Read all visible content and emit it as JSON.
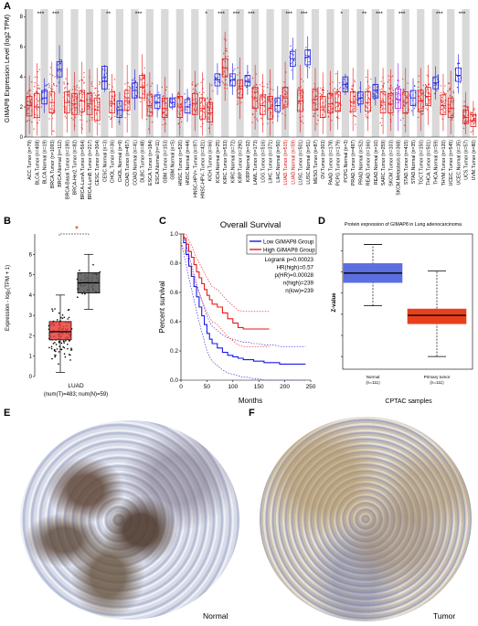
{
  "panels": {
    "A": {
      "letter": "A",
      "ylabel": "GIMAP8 Expression Level (log2 TPM)",
      "yticks": [
        0,
        2,
        4,
        6,
        8
      ],
      "ylim": [
        0,
        8.5
      ],
      "categories": [
        {
          "label": "ACC.Tumor (n=79)",
          "type": "tumor",
          "median": 2.1,
          "q1": 1.4,
          "q3": 2.7,
          "min": 0.2,
          "max": 4.1,
          "sig": "",
          "red": false
        },
        {
          "label": "BLCA.Tumor (n=408)",
          "type": "tumor",
          "median": 2.0,
          "q1": 1.3,
          "q3": 2.9,
          "min": 0.1,
          "max": 4.9,
          "sig": "***",
          "red": false
        },
        {
          "label": "BLCA.Normal (n=19)",
          "type": "normal",
          "median": 2.6,
          "q1": 2.2,
          "q3": 3.1,
          "min": 1.6,
          "max": 3.9,
          "sig": "",
          "red": false
        },
        {
          "label": "BRCA.Tumor (n=1093)",
          "type": "tumor",
          "median": 2.3,
          "q1": 1.6,
          "q3": 3.0,
          "min": 0.1,
          "max": 5.0,
          "sig": "***",
          "red": false
        },
        {
          "label": "BRCA.Normal (n=112)",
          "type": "normal",
          "median": 4.5,
          "q1": 4.0,
          "q3": 5.0,
          "min": 2.9,
          "max": 6.1,
          "sig": "",
          "red": false
        },
        {
          "label": "BRCA-Basal.Tumor (n=190)",
          "type": "tumor",
          "median": 2.3,
          "q1": 1.6,
          "q3": 3.0,
          "min": 0.3,
          "max": 4.6,
          "sig": "",
          "red": false
        },
        {
          "label": "BRCA-Her2.Tumor (n=82)",
          "type": "tumor",
          "median": 2.2,
          "q1": 1.5,
          "q3": 2.9,
          "min": 0.4,
          "max": 4.3,
          "sig": "",
          "red": false
        },
        {
          "label": "BRCA-LumA.Tumor (n=564)",
          "type": "tumor",
          "median": 2.4,
          "q1": 1.7,
          "q3": 3.1,
          "min": 0.2,
          "max": 5.0,
          "sig": "",
          "red": false
        },
        {
          "label": "BRCA-LumB.Tumor (n=217)",
          "type": "tumor",
          "median": 2.2,
          "q1": 1.5,
          "q3": 2.9,
          "min": 0.3,
          "max": 4.5,
          "sig": "",
          "red": false
        },
        {
          "label": "CESC.Tumor (n=304)",
          "type": "tumor",
          "median": 1.8,
          "q1": 1.1,
          "q3": 2.6,
          "min": 0.1,
          "max": 4.6,
          "sig": "",
          "red": false
        },
        {
          "label": "CESC.Normal (n=3)",
          "type": "normal",
          "median": 3.7,
          "q1": 3.2,
          "q3": 4.7,
          "min": 3.0,
          "max": 4.8,
          "sig": "**",
          "red": false
        },
        {
          "label": "CHOL.Tumor (n=36)",
          "type": "tumor",
          "median": 2.2,
          "q1": 1.6,
          "q3": 3.0,
          "min": 0.6,
          "max": 4.2,
          "sig": "",
          "red": false
        },
        {
          "label": "CHOL.Normal (n=9)",
          "type": "normal",
          "median": 1.8,
          "q1": 1.3,
          "q3": 2.4,
          "min": 0.8,
          "max": 3.0,
          "sig": "",
          "red": false
        },
        {
          "label": "COAD.Tumor (n=457)",
          "type": "tumor",
          "median": 2.4,
          "q1": 1.8,
          "q3": 3.1,
          "min": 0.3,
          "max": 4.8,
          "sig": "",
          "red": false
        },
        {
          "label": "COAD.Normal (n=41)",
          "type": "normal",
          "median": 3.1,
          "q1": 2.6,
          "q3": 3.6,
          "min": 1.8,
          "max": 4.5,
          "sig": "***",
          "red": false
        },
        {
          "label": "DLBC.Tumor (n=48)",
          "type": "tumor",
          "median": 3.3,
          "q1": 2.6,
          "q3": 4.1,
          "min": 1.2,
          "max": 5.5,
          "sig": "",
          "red": false
        },
        {
          "label": "ESCA.Tumor (n=184)",
          "type": "tumor",
          "median": 2.1,
          "q1": 1.4,
          "q3": 2.8,
          "min": 0.2,
          "max": 4.3,
          "sig": "",
          "red": false
        },
        {
          "label": "ESCA.Normal (n=11)",
          "type": "normal",
          "median": 2.3,
          "q1": 1.9,
          "q3": 2.8,
          "min": 1.3,
          "max": 3.5,
          "sig": "",
          "red": false
        },
        {
          "label": "GBM.Tumor (n=153)",
          "type": "tumor",
          "median": 1.9,
          "q1": 1.3,
          "q3": 2.6,
          "min": 0.3,
          "max": 4.0,
          "sig": "",
          "red": false
        },
        {
          "label": "GBM.Normal (n=5)",
          "type": "normal",
          "median": 2.3,
          "q1": 2.0,
          "q3": 2.6,
          "min": 1.8,
          "max": 2.9,
          "sig": "",
          "red": false
        },
        {
          "label": "HNSC.Tumor (n=520)",
          "type": "tumor",
          "median": 2.0,
          "q1": 1.3,
          "q3": 2.7,
          "min": 0.1,
          "max": 4.5,
          "sig": "",
          "red": false
        },
        {
          "label": "HNSC.Normal (n=44)",
          "type": "normal",
          "median": 2.0,
          "q1": 1.6,
          "q3": 2.5,
          "min": 1.0,
          "max": 3.2,
          "sig": "",
          "red": false
        },
        {
          "label": "HNSC-HPV+.Tumor (n=97)",
          "type": "tumor",
          "median": 2.2,
          "q1": 1.5,
          "q3": 2.9,
          "min": 0.4,
          "max": 4.4,
          "sig": "",
          "red": false
        },
        {
          "label": "HNSC-HPV-.Tumor (n=421)",
          "type": "tumor",
          "median": 1.9,
          "q1": 1.2,
          "q3": 2.6,
          "min": 0.1,
          "max": 4.3,
          "sig": "*",
          "red": false
        },
        {
          "label": "KICH.Tumor (n=66)",
          "type": "tumor",
          "median": 1.6,
          "q1": 1.0,
          "q3": 2.3,
          "min": 0.2,
          "max": 3.6,
          "sig": "",
          "red": false
        },
        {
          "label": "KICH.Normal (n=25)",
          "type": "normal",
          "median": 3.8,
          "q1": 3.4,
          "q3": 4.2,
          "min": 2.8,
          "max": 4.9,
          "sig": "***",
          "red": false
        },
        {
          "label": "KIRC.Tumor (n=533)",
          "type": "tumor",
          "median": 4.6,
          "q1": 4.0,
          "q3": 5.2,
          "min": 2.4,
          "max": 7.0,
          "sig": "",
          "red": false
        },
        {
          "label": "KIRC.Normal (n=72)",
          "type": "normal",
          "median": 3.8,
          "q1": 3.4,
          "q3": 4.2,
          "min": 2.8,
          "max": 4.9,
          "sig": "***",
          "red": false
        },
        {
          "label": "KIRP.Tumor (n=290)",
          "type": "tumor",
          "median": 3.2,
          "q1": 2.6,
          "q3": 3.8,
          "min": 1.2,
          "max": 5.3,
          "sig": "",
          "red": false
        },
        {
          "label": "KIRP.Normal (n=32)",
          "type": "normal",
          "median": 3.7,
          "q1": 3.4,
          "q3": 4.1,
          "min": 2.8,
          "max": 4.8,
          "sig": "***",
          "red": false
        },
        {
          "label": "LAML.Tumor (n=173)",
          "type": "tumor",
          "median": 2.6,
          "q1": 1.9,
          "q3": 3.3,
          "min": 0.5,
          "max": 4.8,
          "sig": "",
          "red": false
        },
        {
          "label": "LGG.Tumor (n=516)",
          "type": "tumor",
          "median": 2.1,
          "q1": 1.5,
          "q3": 2.8,
          "min": 0.3,
          "max": 4.2,
          "sig": "",
          "red": false
        },
        {
          "label": "LIHC.Tumor (n=371)",
          "type": "tumor",
          "median": 1.9,
          "q1": 1.2,
          "q3": 2.7,
          "min": 0.1,
          "max": 4.5,
          "sig": "",
          "red": false
        },
        {
          "label": "LIHC.Normal (n=50)",
          "type": "normal",
          "median": 2.1,
          "q1": 1.7,
          "q3": 2.6,
          "min": 1.0,
          "max": 3.4,
          "sig": "",
          "red": false
        },
        {
          "label": "LUAD.Tumor (n=515)",
          "type": "tumor",
          "median": 2.6,
          "q1": 2.0,
          "q3": 3.3,
          "min": 0.5,
          "max": 5.0,
          "sig": "***",
          "red": true
        },
        {
          "label": "LUAD.Normal (n=59)",
          "type": "normal",
          "median": 5.2,
          "q1": 4.7,
          "q3": 5.7,
          "min": 3.8,
          "max": 6.6,
          "sig": "",
          "red": true
        },
        {
          "label": "LUSC.Tumor (n=501)",
          "type": "tumor",
          "median": 2.4,
          "q1": 1.7,
          "q3": 3.1,
          "min": 0.3,
          "max": 4.8,
          "sig": "***",
          "red": false
        },
        {
          "label": "LUSC.Normal (n=51)",
          "type": "normal",
          "median": 5.3,
          "q1": 4.8,
          "q3": 5.8,
          "min": 3.9,
          "max": 6.7,
          "sig": "",
          "red": false
        },
        {
          "label": "MESO.Tumor (n=87)",
          "type": "tumor",
          "median": 2.5,
          "q1": 1.8,
          "q3": 3.2,
          "min": 0.4,
          "max": 4.6,
          "sig": "",
          "red": false
        },
        {
          "label": "OV.Tumor (n=303)",
          "type": "tumor",
          "median": 2.0,
          "q1": 1.3,
          "q3": 2.7,
          "min": 0.2,
          "max": 4.3,
          "sig": "",
          "red": false
        },
        {
          "label": "PAAD.Tumor (n=178)",
          "type": "tumor",
          "median": 2.2,
          "q1": 1.6,
          "q3": 2.9,
          "min": 0.4,
          "max": 4.4,
          "sig": "",
          "red": false
        },
        {
          "label": "PCPG.Tumor (n=179)",
          "type": "tumor",
          "median": 2.3,
          "q1": 1.7,
          "q3": 3.0,
          "min": 0.5,
          "max": 4.4,
          "sig": "*",
          "red": false
        },
        {
          "label": "PCPG.Normal (n=3)",
          "type": "normal",
          "median": 3.5,
          "q1": 3.0,
          "q3": 4.0,
          "min": 2.8,
          "max": 4.2,
          "sig": "",
          "red": false
        },
        {
          "label": "PRAD.Tumor (n=497)",
          "type": "tumor",
          "median": 2.3,
          "q1": 1.7,
          "q3": 3.0,
          "min": 0.4,
          "max": 4.6,
          "sig": "",
          "red": false
        },
        {
          "label": "PRAD.Normal (n=52)",
          "type": "normal",
          "median": 2.6,
          "q1": 2.2,
          "q3": 3.0,
          "min": 1.6,
          "max": 3.7,
          "sig": "**",
          "red": false
        },
        {
          "label": "READ.Tumor (n=166)",
          "type": "tumor",
          "median": 2.3,
          "q1": 1.7,
          "q3": 3.0,
          "min": 0.4,
          "max": 4.5,
          "sig": "",
          "red": false
        },
        {
          "label": "READ.Normal (n=10)",
          "type": "normal",
          "median": 3.1,
          "q1": 2.6,
          "q3": 3.5,
          "min": 2.1,
          "max": 4.0,
          "sig": "***",
          "red": false
        },
        {
          "label": "SARC.Tumor (n=259)",
          "type": "tumor",
          "median": 2.3,
          "q1": 1.6,
          "q3": 3.0,
          "min": 0.2,
          "max": 4.6,
          "sig": "",
          "red": false
        },
        {
          "label": "SKCM.Tumor (n=103)",
          "type": "tumor",
          "median": 2.2,
          "q1": 1.6,
          "q3": 2.9,
          "min": 0.4,
          "max": 4.5,
          "sig": "",
          "red": false
        },
        {
          "label": "SKCM.Metastasis (n=368)",
          "type": "meta",
          "median": 2.5,
          "q1": 1.9,
          "q3": 3.2,
          "min": 0.4,
          "max": 4.9,
          "sig": "***",
          "red": false
        },
        {
          "label": "STAD.Tumor (n=415)",
          "type": "tumor",
          "median": 2.3,
          "q1": 1.6,
          "q3": 3.0,
          "min": 0.3,
          "max": 4.6,
          "sig": "",
          "red": false
        },
        {
          "label": "STAD.Normal (n=35)",
          "type": "normal",
          "median": 2.6,
          "q1": 2.1,
          "q3": 3.1,
          "min": 1.4,
          "max": 3.9,
          "sig": "",
          "red": false
        },
        {
          "label": "TGCT.Tumor (n=150)",
          "type": "tumor",
          "median": 2.4,
          "q1": 1.7,
          "q3": 3.1,
          "min": 0.4,
          "max": 4.6,
          "sig": "",
          "red": false
        },
        {
          "label": "THCA.Tumor (n=501)",
          "type": "tumor",
          "median": 2.7,
          "q1": 2.1,
          "q3": 3.3,
          "min": 0.8,
          "max": 4.8,
          "sig": "",
          "red": false
        },
        {
          "label": "THCA.Normal (n=59)",
          "type": "normal",
          "median": 3.6,
          "q1": 3.2,
          "q3": 4.0,
          "min": 2.5,
          "max": 4.7,
          "sig": "***",
          "red": false
        },
        {
          "label": "THYM.Tumor (n=120)",
          "type": "tumor",
          "median": 2.1,
          "q1": 1.5,
          "q3": 2.8,
          "min": 0.4,
          "max": 4.2,
          "sig": "",
          "red": false
        },
        {
          "label": "UCEC.Tumor (n=545)",
          "type": "tumor",
          "median": 1.9,
          "q1": 1.3,
          "q3": 2.6,
          "min": 0.2,
          "max": 4.4,
          "sig": "",
          "red": false
        },
        {
          "label": "UCEC.Normal (n=35)",
          "type": "normal",
          "median": 4.1,
          "q1": 3.7,
          "q3": 4.6,
          "min": 2.9,
          "max": 5.5,
          "sig": "***",
          "red": false
        },
        {
          "label": "UCS.Tumor (n=57)",
          "type": "tumor",
          "median": 1.3,
          "q1": 0.9,
          "q3": 1.8,
          "min": 0.2,
          "max": 3.0,
          "sig": "",
          "red": false
        },
        {
          "label": "UVM.Tumor (n=80)",
          "type": "tumor",
          "median": 1.1,
          "q1": 0.7,
          "q3": 1.5,
          "min": 0.1,
          "max": 2.4,
          "sig": "",
          "red": false
        }
      ]
    },
    "B": {
      "letter": "B",
      "ylabel": "Expression - log₂(TPM + 1)",
      "yticks": [
        0,
        1,
        2,
        3,
        4,
        5,
        6
      ],
      "ylim": [
        0,
        7
      ],
      "sig": "*",
      "xlabel": "LUAD",
      "caption": "(num(T)=483; num(N)=59)",
      "boxes": [
        {
          "group": "T",
          "median": 2.2,
          "q1": 1.8,
          "q3": 2.7,
          "min": 0.2,
          "max": 4.0,
          "color": "#e8413c"
        },
        {
          "group": "N",
          "median": 4.6,
          "q1": 4.1,
          "q3": 5.1,
          "min": 3.3,
          "max": 6.0,
          "color": "#555555"
        }
      ]
    },
    "C": {
      "letter": "C",
      "title": "Overall Survival",
      "ylabel": "Percent survival",
      "xlabel": "Months",
      "xticks": [
        0,
        50,
        100,
        150,
        200,
        250
      ],
      "yticks": [
        0.0,
        0.2,
        0.4,
        0.6,
        0.8,
        1.0
      ],
      "xlim": [
        0,
        250
      ],
      "ylim": [
        0,
        1
      ],
      "legend": [
        {
          "name": "Low GIMAP8 Group",
          "color": "#1a1ae6"
        },
        {
          "name": "High GIMAP8 Group",
          "color": "#e61a1a"
        }
      ],
      "stats": [
        "Logrank p=0.00023",
        "HR(high)=0.57",
        "p(HR)=0.00028",
        "n(high)=239",
        "n(low)=239"
      ],
      "series": [
        {
          "name": "Low GIMAP8 Group",
          "color": "#1a1ae6",
          "x": [
            0,
            5,
            10,
            15,
            20,
            25,
            30,
            35,
            40,
            45,
            50,
            55,
            60,
            70,
            80,
            90,
            100,
            110,
            120,
            130,
            140,
            150,
            160,
            170,
            180,
            190,
            200,
            210,
            220,
            230,
            240
          ],
          "y": [
            1.0,
            0.94,
            0.86,
            0.78,
            0.71,
            0.64,
            0.57,
            0.5,
            0.44,
            0.38,
            0.32,
            0.28,
            0.25,
            0.22,
            0.19,
            0.17,
            0.16,
            0.15,
            0.14,
            0.14,
            0.13,
            0.13,
            0.12,
            0.12,
            0.12,
            0.11,
            0.11,
            0.11,
            0.11,
            0.11,
            0.11
          ]
        },
        {
          "name": "High GIMAP8 Group",
          "color": "#e61a1a",
          "x": [
            0,
            5,
            10,
            15,
            20,
            25,
            30,
            35,
            40,
            45,
            50,
            55,
            60,
            70,
            80,
            90,
            100,
            110,
            120,
            130,
            140,
            150,
            160,
            170
          ],
          "y": [
            1.0,
            0.97,
            0.93,
            0.88,
            0.84,
            0.79,
            0.74,
            0.7,
            0.66,
            0.62,
            0.58,
            0.55,
            0.52,
            0.5,
            0.46,
            0.42,
            0.39,
            0.36,
            0.35,
            0.35,
            0.35,
            0.35,
            0.35,
            0.35
          ]
        }
      ]
    },
    "D": {
      "letter": "D",
      "title": "Protein expression of GIMAP8 in Lung adenocarcinoma",
      "ylabel": "Z-value",
      "xlabel": "CPTAC samples",
      "yticks": [
        -2,
        -1,
        0,
        1,
        2,
        3
      ],
      "ylim": [
        -2.6,
        3.8
      ],
      "boxes": [
        {
          "name": "Normal",
          "n": "(n=111)",
          "median": 1.95,
          "q1": 1.5,
          "q3": 2.4,
          "min": 0.4,
          "max": 3.3,
          "color": "#5b6fe0"
        },
        {
          "name": "Primary tumor",
          "n": "(n=111)",
          "median": -0.05,
          "q1": -0.45,
          "q3": 0.25,
          "min": -2.0,
          "max": 2.05,
          "color": "#e8401c"
        }
      ]
    },
    "E": {
      "letter": "E",
      "label": "Normal"
    },
    "F": {
      "letter": "F",
      "label": "Tumor"
    }
  },
  "colors": {
    "tumor": "#e61a1a",
    "normal": "#1a1ae6",
    "meta": "#a020f0",
    "shade": "#d9d9d9"
  }
}
